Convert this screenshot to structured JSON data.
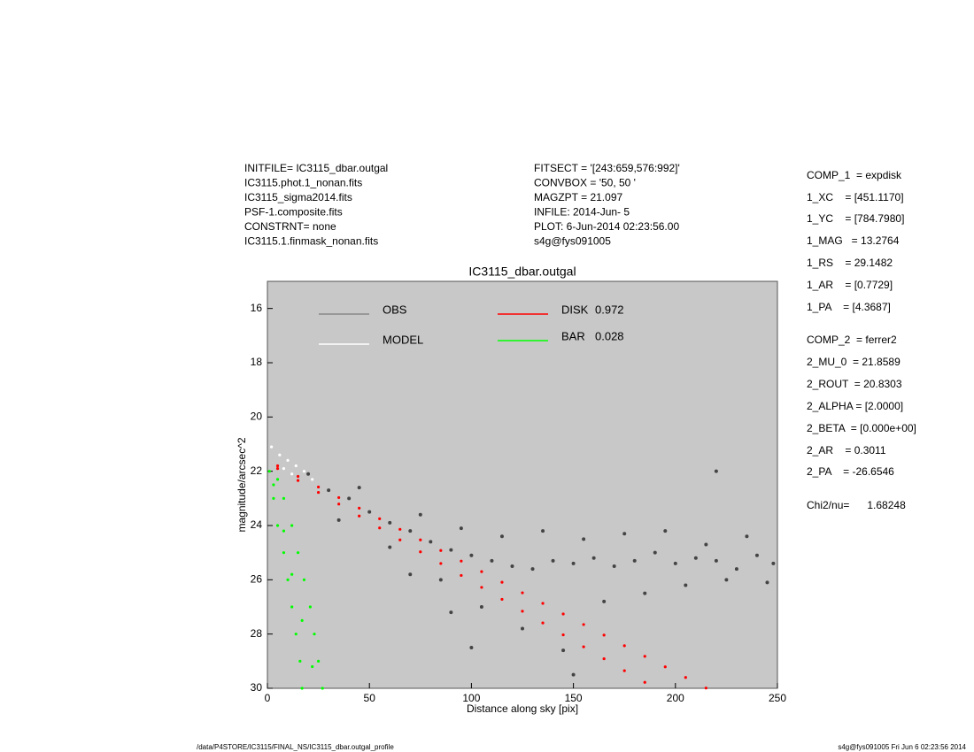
{
  "header": {
    "left": [
      "INITFILE= IC3115_dbar.outgal",
      "IC3115.phot.1_nonan.fits",
      "IC3115_sigma2014.fits",
      "PSF-1.composite.fits",
      "CONSTRNT= none",
      "IC3115.1.finmask_nonan.fits"
    ],
    "middle": [
      "FITSECT = '[243:659,576:992]'",
      "CONVBOX = '50, 50  '",
      "MAGZPT =             21.097",
      "INFILE: 2014-Jun- 5",
      "PLOT:  6-Jun-2014 02:23:56.00",
      "s4g@fys091005"
    ],
    "right": [
      "COMP_1  = expdisk",
      "1_XC    = [451.1170]",
      "1_YC    = [784.7980]",
      "1_MAG   = 13.2764",
      "1_RS    = 29.1482",
      "1_AR    = [0.7729]",
      "1_PA    = [4.3687]",
      "COMP_2  = ferrer2",
      "2_MU_0  = 21.8589",
      "2_ROUT  = 20.8303",
      "2_ALPHA = [2.0000]",
      "2_BETA  = [0.000e+00]",
      "2_AR    = 0.3011",
      "2_PA    = -26.6546",
      "Chi2/nu=      1.68248"
    ]
  },
  "footer": {
    "left": "/data/P4STORE/IC3115/FINAL_NS/IC3115_dbar.outgal_profile",
    "right": "s4g@fys091005  Fri Jun  6 02:23:56 2014"
  },
  "chart_data": {
    "type": "scatter",
    "title": "IC3115_dbar.outgal",
    "x_label": "Distance along sky [pix]",
    "y_label": "magnitude/arcsec^2",
    "xlim": [
      0,
      250
    ],
    "xticks": [
      0,
      50,
      100,
      150,
      200,
      250
    ],
    "ylim": [
      30,
      15
    ],
    "yticks": [
      16,
      18,
      20,
      22,
      24,
      26,
      28,
      30
    ],
    "background": "#c8c8c8",
    "series": [
      {
        "name": "OBS",
        "color": "#444444",
        "x": [
          20,
          30,
          40,
          50,
          60,
          70,
          80,
          90,
          100,
          110,
          120,
          130,
          140,
          150,
          160,
          170,
          180,
          190,
          200,
          210,
          220,
          230,
          240,
          248,
          35,
          45,
          60,
          75,
          85,
          95,
          105,
          115,
          125,
          135,
          145,
          155,
          165,
          175,
          185,
          195,
          205,
          215,
          225,
          235,
          245,
          100,
          150,
          220,
          70,
          90
        ],
        "values": [
          22.1,
          22.7,
          23.0,
          23.5,
          23.9,
          24.2,
          24.6,
          24.9,
          25.1,
          25.3,
          25.5,
          25.6,
          25.3,
          25.4,
          25.2,
          25.5,
          25.3,
          25.0,
          25.4,
          25.2,
          25.3,
          25.6,
          25.1,
          25.4,
          23.8,
          22.6,
          24.8,
          23.6,
          26.0,
          24.1,
          27.0,
          24.4,
          27.8,
          24.2,
          28.6,
          24.5,
          26.8,
          24.3,
          26.5,
          24.2,
          26.2,
          24.7,
          26.0,
          24.4,
          26.1,
          28.5,
          29.5,
          22.0,
          25.8,
          27.2
        ]
      },
      {
        "name": "MODEL",
        "color": "#ffffff",
        "x": [
          2,
          6,
          10,
          14,
          18,
          22,
          8,
          12
        ],
        "values": [
          21.1,
          21.4,
          21.6,
          21.8,
          22.0,
          22.3,
          21.9,
          22.1
        ]
      },
      {
        "name": "DISK",
        "fraction": 0.972,
        "color": "#ff0000",
        "x": [
          5,
          15,
          25,
          35,
          45,
          55,
          65,
          75,
          85,
          95,
          105,
          115,
          125,
          135,
          145,
          155,
          165,
          175,
          185,
          195,
          205,
          215,
          5,
          15,
          25,
          35,
          45,
          55,
          65,
          75,
          85,
          95,
          105,
          115,
          125,
          135,
          145,
          155,
          165,
          175,
          185
        ],
        "values": [
          21.8,
          22.19,
          22.58,
          22.97,
          23.36,
          23.75,
          24.14,
          24.53,
          24.92,
          25.31,
          25.7,
          26.09,
          26.48,
          26.87,
          27.26,
          27.65,
          28.04,
          28.43,
          28.82,
          29.21,
          29.6,
          29.99,
          21.9,
          22.34,
          22.78,
          23.21,
          23.65,
          24.09,
          24.53,
          24.97,
          25.4,
          25.84,
          26.28,
          26.72,
          27.16,
          27.59,
          28.03,
          28.47,
          28.91,
          29.35,
          29.78
        ]
      },
      {
        "name": "BAR",
        "fraction": 0.028,
        "color": "#00ff00",
        "x": [
          1,
          3,
          5,
          8,
          10,
          12,
          14,
          16,
          17,
          5,
          8,
          12,
          15,
          18,
          21,
          23,
          25,
          27,
          3,
          8,
          12,
          17,
          22
        ],
        "values": [
          22,
          23,
          24,
          25,
          26,
          27,
          28,
          29,
          30,
          22.3,
          23,
          24,
          25,
          26,
          27,
          28,
          29,
          30,
          22.5,
          24.2,
          25.8,
          27.5,
          29.2
        ]
      }
    ]
  }
}
